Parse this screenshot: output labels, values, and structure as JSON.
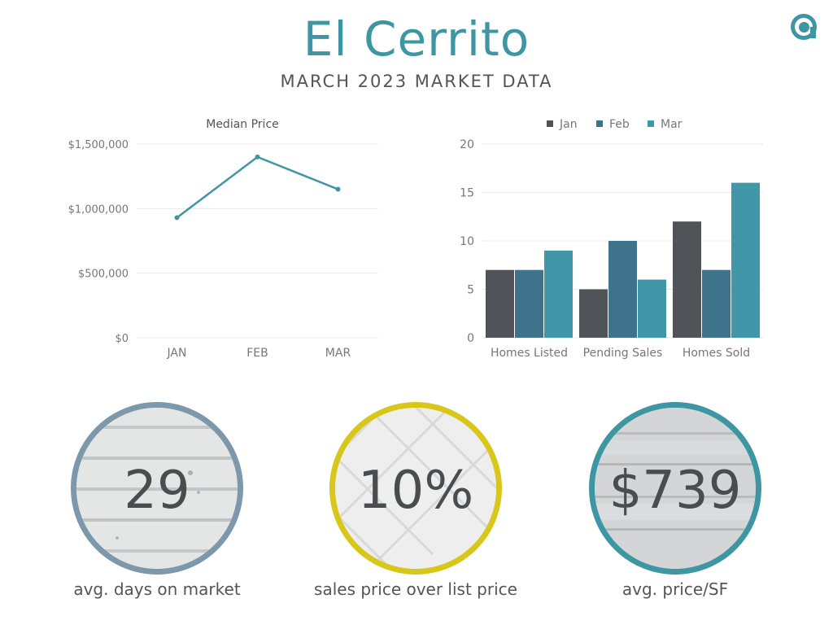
{
  "header": {
    "title": "El Cerrito",
    "subtitle": "MARCH 2023 MARKET DATA"
  },
  "logo": {
    "icon": "brand-at-icon",
    "color": "#3f96a3"
  },
  "colors": {
    "teal": "#3f96a3",
    "jan": "#505459",
    "feb": "#3e738b",
    "mar": "#4196a7",
    "grid": "#e8e8e8",
    "axis_text": "#777777"
  },
  "chart_data": [
    {
      "type": "line",
      "title": "Median Price",
      "categories": [
        "JAN",
        "FEB",
        "MAR"
      ],
      "series": [
        {
          "values": [
            930000,
            1400000,
            1150000
          ]
        }
      ],
      "ylim": [
        0,
        1500000
      ],
      "yticks": [
        0,
        500000,
        1000000,
        1500000
      ],
      "ytick_labels": [
        "$0",
        "$500,000",
        "$1,000,000",
        "$1,500,000"
      ],
      "grid": true
    },
    {
      "type": "bar",
      "categories": [
        "Homes Listed",
        "Pending Sales",
        "Homes Sold"
      ],
      "series": [
        {
          "name": "Jan",
          "values": [
            7,
            5,
            12
          ]
        },
        {
          "name": "Feb",
          "values": [
            7,
            10,
            7
          ]
        },
        {
          "name": "Mar",
          "values": [
            9,
            6,
            16
          ]
        }
      ],
      "ylim": [
        0,
        20
      ],
      "yticks": [
        0,
        5,
        10,
        15,
        20
      ],
      "legend": "top",
      "grid": true
    }
  ],
  "stats": [
    {
      "value": "29",
      "label": "avg. days on market",
      "ring_color": "#7d98ab",
      "texture": "wood-siding"
    },
    {
      "value": "10%",
      "label": "sales price over list price",
      "ring_color": "#d8c61b",
      "texture": "white-tile"
    },
    {
      "value": "$739",
      "label": "avg. price/SF",
      "ring_color": "#3f96a3",
      "texture": "weathered-wood"
    }
  ]
}
